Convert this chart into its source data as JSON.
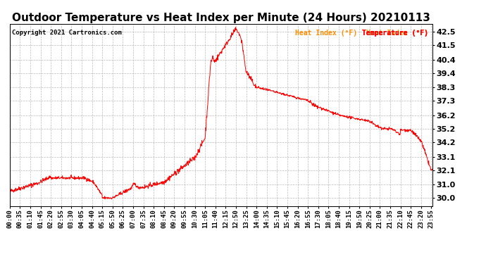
{
  "title": "Outdoor Temperature vs Heat Index per Minute (24 Hours) 20210113",
  "copyright_text": "Copyright 2021 Cartronics.com",
  "legend_label_heat": "Heat Index (°F)",
  "legend_label_temp": "Temperature (°F)",
  "ylabel_right_ticks": [
    30.0,
    31.0,
    32.1,
    33.1,
    34.2,
    35.2,
    36.2,
    37.3,
    38.3,
    39.4,
    40.4,
    41.5,
    42.5
  ],
  "ylim": [
    29.4,
    43.1
  ],
  "background_color": "#ffffff",
  "grid_color": "#aaaaaa",
  "line_color": "red",
  "title_fontsize": 11,
  "tick_fontsize": 6.5,
  "num_minutes": 1440,
  "tick_interval": 35
}
